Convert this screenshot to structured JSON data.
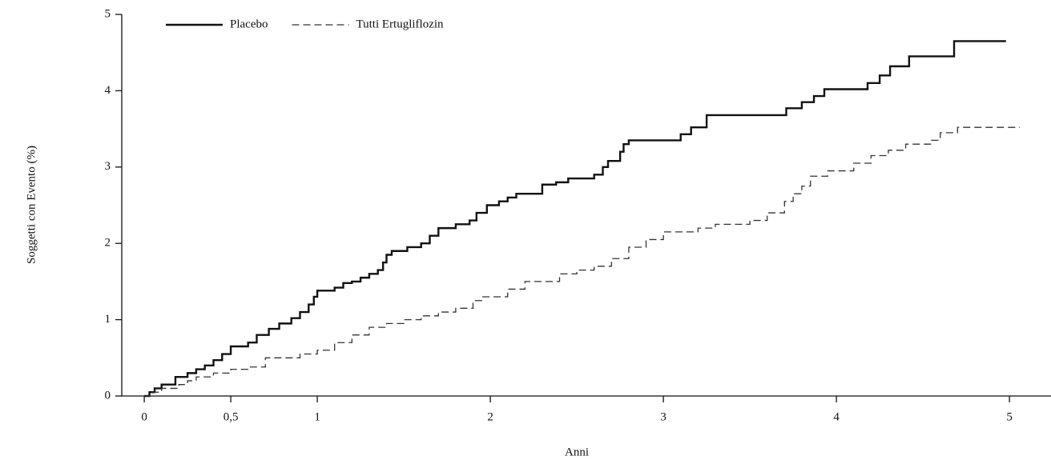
{
  "chart_data": {
    "type": "step",
    "xlabel": "Anni",
    "ylabel": "Soggetti con Evento (%)",
    "xlim": [
      -0.13,
      5.24
    ],
    "ylim": [
      0,
      5
    ],
    "xticks": [
      0,
      {
        "value": 0.5,
        "label": "0,5"
      },
      1,
      2,
      3,
      4,
      5
    ],
    "yticks": [
      0,
      1,
      2,
      3,
      4,
      5
    ],
    "legend": "upper left",
    "series": [
      {
        "name": "Placebo",
        "color": "#111111",
        "dash": "solid",
        "x": [
          0,
          0.03,
          0.06,
          0.1,
          0.18,
          0.25,
          0.3,
          0.35,
          0.4,
          0.45,
          0.5,
          0.6,
          0.65,
          0.72,
          0.78,
          0.85,
          0.9,
          0.95,
          0.98,
          1.0,
          1.1,
          1.15,
          1.2,
          1.25,
          1.3,
          1.35,
          1.38,
          1.4,
          1.43,
          1.52,
          1.6,
          1.65,
          1.7,
          1.8,
          1.88,
          1.92,
          1.98,
          2.05,
          2.1,
          2.15,
          2.3,
          2.38,
          2.45,
          2.6,
          2.65,
          2.68,
          2.75,
          2.77,
          2.8,
          3.1,
          3.16,
          3.25,
          3.71,
          3.8,
          3.87,
          3.93,
          4.18,
          4.25,
          4.31,
          4.42,
          4.68,
          4.98
        ],
        "values": [
          0,
          0.05,
          0.1,
          0.15,
          0.25,
          0.3,
          0.35,
          0.4,
          0.47,
          0.55,
          0.65,
          0.7,
          0.8,
          0.88,
          0.95,
          1.02,
          1.1,
          1.2,
          1.3,
          1.38,
          1.42,
          1.48,
          1.5,
          1.55,
          1.6,
          1.65,
          1.75,
          1.85,
          1.9,
          1.95,
          2.0,
          2.1,
          2.2,
          2.25,
          2.3,
          2.4,
          2.5,
          2.55,
          2.6,
          2.65,
          2.77,
          2.8,
          2.85,
          2.9,
          3.0,
          3.08,
          3.2,
          3.3,
          3.35,
          3.43,
          3.52,
          3.68,
          3.77,
          3.85,
          3.93,
          4.02,
          4.1,
          4.2,
          4.32,
          4.45,
          4.65,
          4.65
        ]
      },
      {
        "name": "Tutti Ertugliflozin",
        "color": "#333333",
        "dash": "dashed",
        "x": [
          0,
          0.05,
          0.1,
          0.2,
          0.25,
          0.3,
          0.4,
          0.5,
          0.6,
          0.7,
          0.9,
          1.0,
          1.1,
          1.2,
          1.3,
          1.4,
          1.5,
          1.6,
          1.7,
          1.8,
          1.9,
          1.95,
          2.1,
          2.2,
          2.4,
          2.5,
          2.6,
          2.7,
          2.8,
          2.9,
          3.0,
          3.2,
          3.3,
          3.5,
          3.6,
          3.7,
          3.75,
          3.8,
          3.85,
          3.95,
          4.1,
          4.2,
          4.3,
          4.4,
          4.55,
          4.6,
          4.7,
          5.06
        ],
        "values": [
          0,
          0.05,
          0.1,
          0.15,
          0.2,
          0.25,
          0.3,
          0.35,
          0.38,
          0.5,
          0.55,
          0.6,
          0.7,
          0.8,
          0.9,
          0.95,
          1.0,
          1.05,
          1.1,
          1.15,
          1.25,
          1.3,
          1.4,
          1.5,
          1.6,
          1.65,
          1.7,
          1.8,
          1.95,
          2.05,
          2.15,
          2.2,
          2.25,
          2.3,
          2.4,
          2.55,
          2.65,
          2.75,
          2.88,
          2.95,
          3.05,
          3.15,
          3.22,
          3.3,
          3.35,
          3.45,
          3.52,
          3.52
        ]
      }
    ]
  }
}
